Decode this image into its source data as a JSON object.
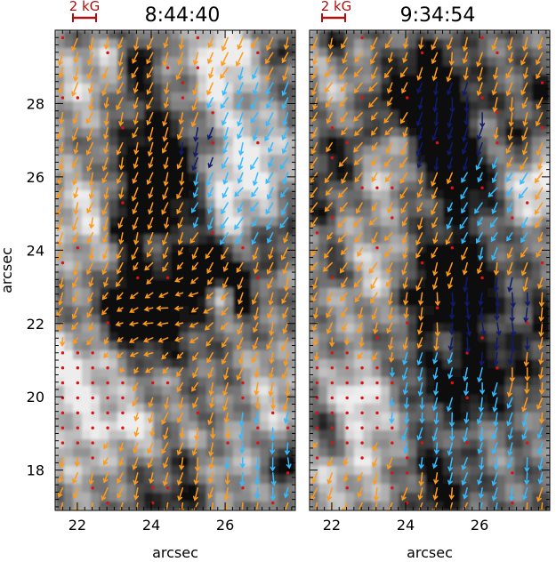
{
  "chart_data": {
    "type": "vector-field",
    "ylabel": "arcsec",
    "colors": {
      "orange": "#ff9a1a",
      "cyan": "#33bbff",
      "navy": "#101a6e",
      "red": "#dd1111",
      "scale_bar": "#b01010"
    },
    "panels": [
      {
        "title": "8:44:40",
        "scale_label": "2 kG",
        "xlabel": "arcsec",
        "xlim": [
          21.4,
          27.9
        ],
        "ylim": [
          16.9,
          30.0
        ],
        "xticks": [
          "22",
          "24",
          "26"
        ],
        "yticks": [
          "18",
          "20",
          "22",
          "24",
          "26",
          "28"
        ],
        "features": [
          {
            "x": 24.0,
            "y": 22.6,
            "r": 1.2,
            "v": -0.8
          },
          {
            "x": 24.3,
            "y": 26.0,
            "r": 1.4,
            "v": -0.4
          },
          {
            "x": 22.4,
            "y": 20.0,
            "r": 1.5,
            "v": 0.5
          },
          {
            "x": 22.3,
            "y": 25.0,
            "r": 1.2,
            "v": 0.45
          },
          {
            "x": 26.8,
            "y": 26.5,
            "r": 1.0,
            "v": 0.5
          },
          {
            "x": 27.4,
            "y": 19.5,
            "r": 1.0,
            "v": 0.3
          },
          {
            "x": 22.0,
            "y": 28.4,
            "r": 1.0,
            "v": 0.35
          }
        ],
        "flows": [
          {
            "x": 24.2,
            "y": 22.4,
            "dx": -0.28,
            "dy": 0.05,
            "c": "orange",
            "w": 1.0
          },
          {
            "x": 26.5,
            "y": 25.5,
            "dx": -0.2,
            "dy": -0.25,
            "c": "cyan",
            "w": 1.2
          },
          {
            "x": 26.8,
            "y": 27.8,
            "dx": -0.2,
            "dy": -0.3,
            "c": "cyan",
            "w": 0.9
          },
          {
            "x": 25.9,
            "y": 26.9,
            "dx": 0.0,
            "dy": -0.35,
            "c": "navy",
            "w": 0.7
          },
          {
            "x": 22.0,
            "y": 20.0,
            "dx": 0.0,
            "dy": 0.0,
            "c": "red",
            "w": 1.1
          },
          {
            "x": 23.1,
            "y": 24.2,
            "dx": -0.1,
            "dy": -0.3,
            "c": "orange",
            "w": 1.5
          },
          {
            "x": 27.2,
            "y": 18.6,
            "dx": 0.05,
            "dy": -0.3,
            "c": "cyan",
            "w": 0.9
          }
        ]
      },
      {
        "title": "9:34:54",
        "scale_label": "2 kG",
        "xlabel": "arcsec",
        "xlim": [
          21.4,
          27.9
        ],
        "ylim": [
          16.9,
          30.0
        ],
        "xticks": [
          "22",
          "24",
          "26"
        ],
        "yticks": [
          "18",
          "20",
          "22",
          "24",
          "26",
          "28"
        ],
        "features": [
          {
            "x": 25.1,
            "y": 22.8,
            "r": 1.2,
            "v": -0.8
          },
          {
            "x": 25.0,
            "y": 27.5,
            "r": 1.3,
            "v": -0.45
          },
          {
            "x": 22.3,
            "y": 18.8,
            "r": 1.4,
            "v": 0.5
          },
          {
            "x": 22.6,
            "y": 23.5,
            "r": 1.3,
            "v": 0.35
          },
          {
            "x": 27.6,
            "y": 25.8,
            "r": 0.9,
            "v": 0.6
          },
          {
            "x": 27.0,
            "y": 21.0,
            "r": 1.1,
            "v": -0.3
          },
          {
            "x": 22.0,
            "y": 28.6,
            "r": 1.0,
            "v": 0.3
          }
        ],
        "flows": [
          {
            "x": 26.3,
            "y": 22.2,
            "dx": 0.05,
            "dy": -0.35,
            "c": "navy",
            "w": 1.2
          },
          {
            "x": 25.0,
            "y": 27.5,
            "dx": 0.0,
            "dy": -0.4,
            "c": "navy",
            "w": 1.0
          },
          {
            "x": 24.8,
            "y": 20.0,
            "dx": -0.05,
            "dy": -0.32,
            "c": "cyan",
            "w": 1.6
          },
          {
            "x": 26.5,
            "y": 18.5,
            "dx": -0.05,
            "dy": -0.32,
            "c": "cyan",
            "w": 1.5
          },
          {
            "x": 22.4,
            "y": 24.5,
            "dx": -0.2,
            "dy": -0.2,
            "c": "orange",
            "w": 1.3
          },
          {
            "x": 23.5,
            "y": 27.5,
            "dx": -0.25,
            "dy": -0.15,
            "c": "orange",
            "w": 1.0
          },
          {
            "x": 26.3,
            "y": 25.3,
            "dx": -0.2,
            "dy": -0.22,
            "c": "cyan",
            "w": 1.0
          },
          {
            "x": 22.3,
            "y": 20.0,
            "dx": 0.0,
            "dy": 0.0,
            "c": "red",
            "w": 1.0
          }
        ]
      }
    ]
  }
}
